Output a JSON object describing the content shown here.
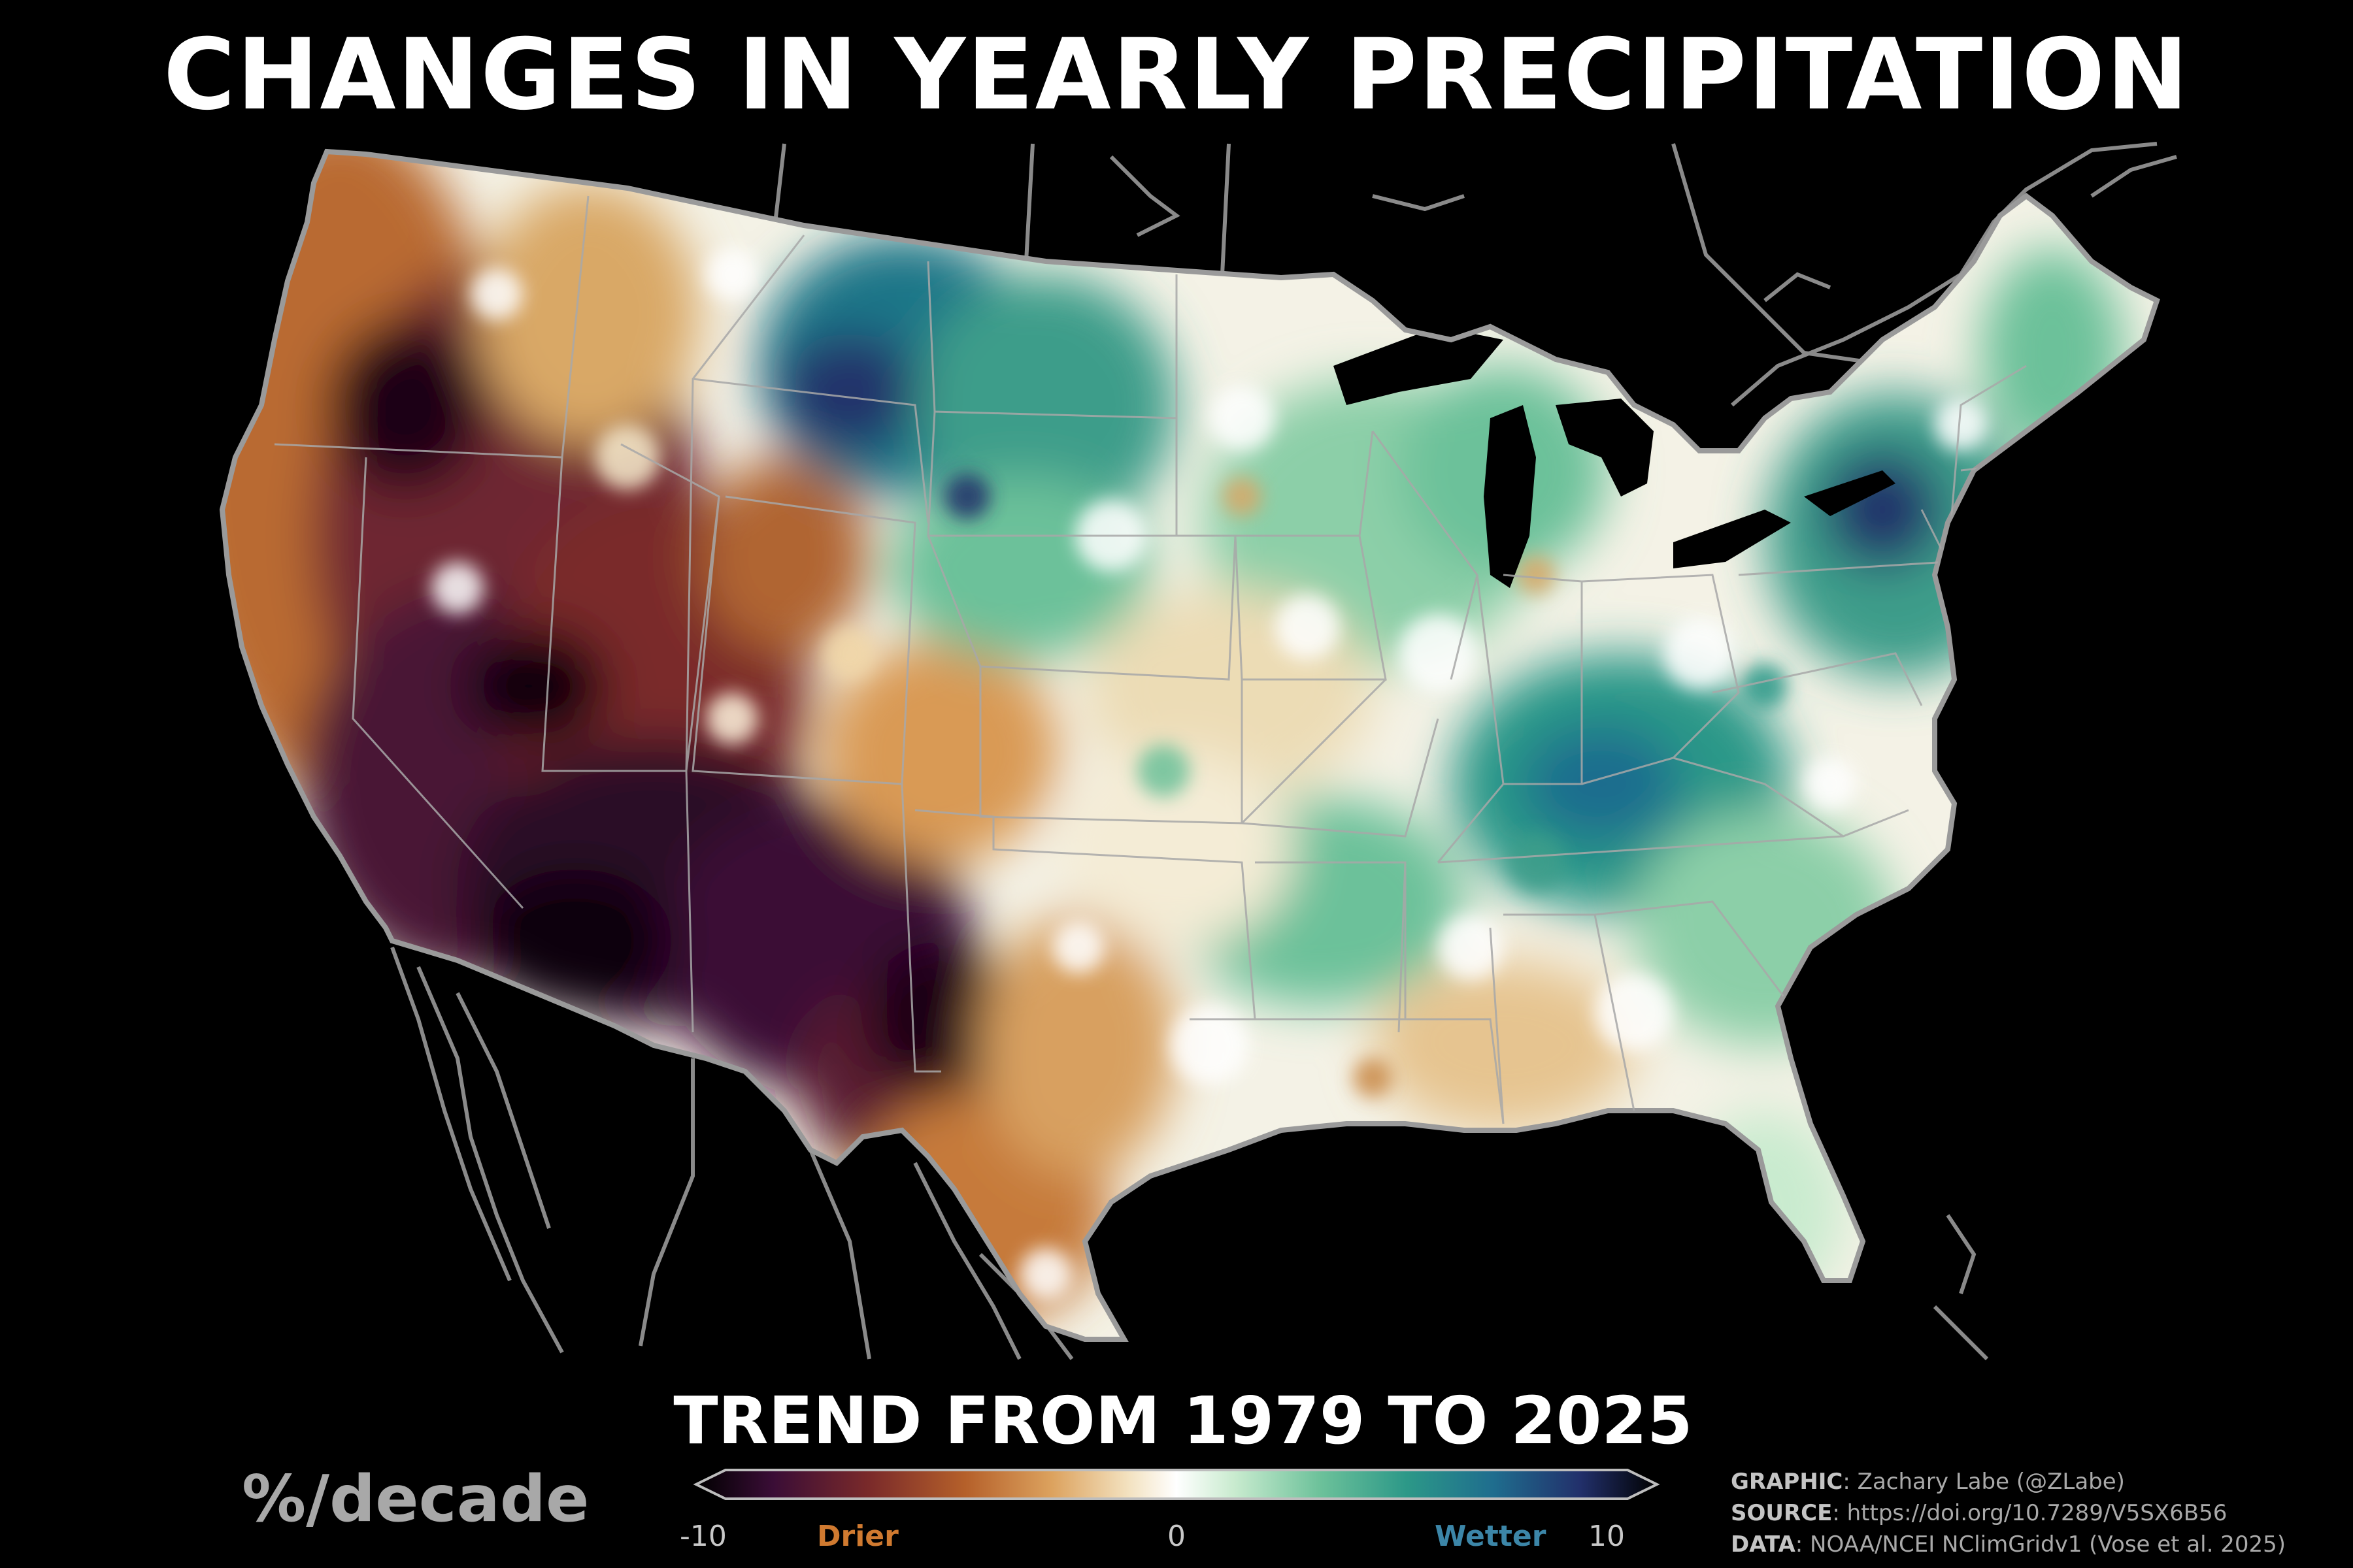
{
  "title": "CHANGES IN YEARLY PRECIPITATION",
  "subtitle": "TREND FROM 1979 TO 2025",
  "units": "%/decade",
  "colorbar": {
    "min_label": "-10",
    "mid_label": "0",
    "max_label": "10",
    "left_word": "Drier",
    "right_word": "Wetter",
    "stops": [
      "#000000",
      "#3a0d36",
      "#7a2a2a",
      "#b5602a",
      "#dca25e",
      "#f3e2c0",
      "#ffffff",
      "#c9ebcf",
      "#6cc19a",
      "#2c9888",
      "#1f6d8e",
      "#22306b",
      "#000000"
    ]
  },
  "credits": {
    "graphic_label": "GRAPHIC",
    "graphic_value": ": Zachary Labe (@ZLabe)",
    "source_label": "SOURCE",
    "source_value": ": https://doi.org/10.7289/V5SX6B56",
    "data_label": "DATA",
    "data_value": ": NOAA/NCEI NClimGridv1 (Vose et al. 2025)"
  },
  "map": {
    "region": "Contiguous United States",
    "border_color": "#9a9a9a",
    "land_base_color": "#f4f2e6"
  }
}
